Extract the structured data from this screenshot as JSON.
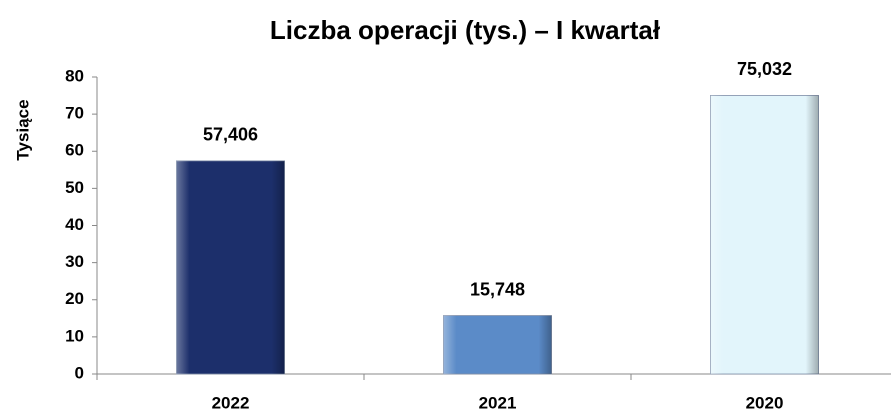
{
  "chart_data": {
    "type": "bar",
    "title": "Liczba operacji (tys.) – I kwartał",
    "y_label": "Tysiące",
    "categories": [
      "2022",
      "2021",
      "2020"
    ],
    "values": [
      57.406,
      15.748,
      75.032
    ],
    "value_labels": [
      "57,406",
      "15,748",
      "75,032"
    ],
    "colors": [
      "#1c2f6b",
      "#5b8bc8",
      "#e2f5fb"
    ],
    "ylim": [
      0,
      80
    ],
    "yticks": [
      0,
      10,
      20,
      30,
      40,
      50,
      60,
      70,
      80
    ],
    "grid": false
  }
}
